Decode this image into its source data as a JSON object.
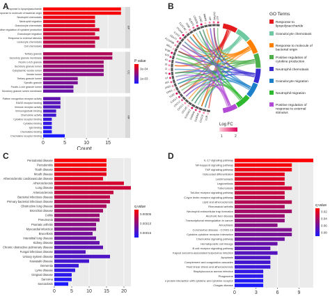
{
  "panels": {
    "a": {
      "letter": "A"
    },
    "b": {
      "letter": "B"
    },
    "c": {
      "letter": "C"
    },
    "d": {
      "letter": "D"
    }
  },
  "chart_data": [
    {
      "panel": "A",
      "type": "bar",
      "orientation": "horizontal",
      "xlabel": "Count",
      "xlim": [
        0,
        19
      ],
      "xticks": [
        0,
        5,
        10,
        15
      ],
      "color_legend": {
        "title": "P value",
        "ticks": [
          "3e-04",
          "1e-03"
        ],
        "colors": [
          "#ff0000",
          "#1a1aff"
        ]
      },
      "facets": [
        {
          "name": "BP",
          "categories": [
            "Response to lipopolysaccharide",
            "Response to molecule of bacterial origin",
            "Neutrophil chemotaxis",
            "Neutrophil migration",
            "Granulocyte chemotaxis",
            "Positive regulation of cytokine production",
            "Granulocyte migration",
            "Response to external stimulus",
            "Leukocyte chemotaxis",
            "Cell chemotaxis"
          ],
          "values": [
            18,
            18,
            12,
            12,
            12,
            13,
            12,
            13,
            12,
            12
          ]
        },
        {
          "name": "CC",
          "categories": [
            "Tertiary granule",
            "Secretory granule membrane",
            "Ficolin-1-rich granule",
            "Secretory granule lumen",
            "Cytoplasmic vesicle lumen",
            "Vesicle lumen",
            "Tertiary granule lumen",
            "Specific granule",
            "Ficolin-1-rich granule lumen",
            "Secretory granule lumen membrane"
          ],
          "values": [
            16,
            16,
            14,
            14,
            14,
            14,
            8,
            8,
            7,
            7
          ]
        },
        {
          "name": "MF",
          "categories": [
            "Pattern recognition receptor activity",
            "RAGE receptor binding",
            "Immune receptor activity",
            "Immunoglobulin binding",
            "Chemokine activity",
            "Cytokine receptor binding",
            "Cytokine binding",
            "IgG binding",
            "Chemokine binding",
            "Chemokine receptor binding"
          ],
          "values": [
            4,
            4,
            4,
            3,
            3,
            2,
            2,
            2,
            2,
            5
          ]
        }
      ]
    },
    {
      "panel": "B",
      "type": "chord",
      "genes": [
        "IL1B",
        "CXCL8",
        "S100A8",
        "S100A9",
        "S100A12",
        "CCL20",
        "CXCL1",
        "CXCL2",
        "CXCL3",
        "TLR2",
        "FPR1",
        "FPR2",
        "C5AR1",
        "CD14",
        "MMP9",
        "PTGS2",
        "SOCS3",
        "TREM1",
        "AQP9",
        "CSF3R",
        "SELL",
        "FCGR3B",
        "CD177",
        "IL1R2",
        "ITGAM",
        "CLEC4E",
        "OSM",
        "NLRP3",
        "CEBPB",
        "LCN2",
        "MMP8",
        "HP",
        "OLFM4",
        "LTF"
      ],
      "go_terms": [
        "Response to lipopolysaccharide",
        "Granulocyte chemotaxis",
        "Response to molecule of bacterial origin",
        "Positive regulation of cytokine production",
        "Neutrophil chemotaxis",
        "Granulocyte migration",
        "Neutrophil migration",
        "Positive regulation of response to external stimulus"
      ],
      "term_colors": [
        "#e41a1c",
        "#6ec9a0",
        "#ff7f00",
        "#4daf4a",
        "#3a2bd1",
        "#1c7fc9",
        "#2db82d",
        "#b24ad6"
      ],
      "legend_title": "GO Terms",
      "logfc_title": "Log FC",
      "logfc_ticks": [
        "1",
        "2"
      ]
    },
    {
      "panel": "C",
      "type": "bar",
      "orientation": "horizontal",
      "xlim": [
        0,
        22
      ],
      "xticks": [
        0,
        5,
        10,
        15,
        20
      ],
      "color_legend": {
        "title": "q value",
        "ticks": [
          "0.00005",
          "0.00010",
          "0.00015"
        ],
        "colors": [
          "#ff0000",
          "#1a1aff"
        ]
      },
      "categories": [
        "Periodontal disease",
        "Periodontitis",
        "Tooth disease",
        "Mouth disease",
        "Atherosclerotic cardiovascular disease",
        "Atherosclerosis",
        "Lung disease",
        "Arteriosclerosis",
        "Bacterial infectious disease",
        "Primary bacterial infectious disease",
        "Obstructive lung disease",
        "Bronchial disease",
        "Colitis",
        "Pneumonia",
        "Psoriatic arthritis",
        "Myocardial infarction",
        "Brucellosis",
        "Interstitial lung disease",
        "Kidney disease",
        "Chronic obstructive pulmonary disease",
        "Fungal infectious disease",
        "Urinary system disease",
        "Kawasaki disease",
        "Dementia",
        "Lyme disease",
        "Gingival disease",
        "Sarcoma",
        "Sarcoidosis"
      ],
      "values": [
        15,
        15,
        15,
        15,
        14,
        20,
        22,
        17,
        16,
        16,
        15,
        14,
        13,
        13,
        12,
        12,
        11,
        12,
        13,
        14,
        9,
        16,
        10,
        7,
        6,
        5,
        5,
        4
      ]
    },
    {
      "panel": "D",
      "type": "bar",
      "orientation": "horizontal",
      "xlim": [
        0,
        11
      ],
      "xticks": [
        0,
        3,
        6,
        9
      ],
      "color_legend": {
        "title": "q value",
        "ticks": [
          "0.02",
          "0.04",
          "0.06",
          "0.08"
        ],
        "colors": [
          "#ff0000",
          "#1a1aff"
        ]
      },
      "categories": [
        "IL-17 signaling pathway",
        "NF-kappa B signaling pathway",
        "TNF signaling pathway",
        "Osteoclast differentiation",
        "Leishmaniasis",
        "Legionellosis",
        "Tuberculosis",
        "Toll-like receptor signaling pathway",
        "C-type lectin receptor signaling pathway",
        "Lipid and atherosclerosis",
        "Rheumatoid arthritis",
        "Neutrophil extracellular trap formation",
        "Alcoholic liver disease",
        "Transcriptional misregulation in cancer",
        "Amoebiasis",
        "Coronavirus disease - COVID-19",
        "Cytokine-cytokine receptor interaction",
        "Chemokine signaling pathway",
        "Hematopoietic cell lineage",
        "B cell receptor signaling pathway",
        "Kaposi sarcoma-associated herpesvirus infection",
        "Apoptosis",
        "Complement and coagulation cascades",
        "Fluid shear stress and atherosclerosis",
        "Staphylococcus aureus infection",
        "Phagosome",
        "Viral protein interaction with cytokine and cytokine receptor",
        "Chagas disease"
      ],
      "values": [
        11,
        8,
        8,
        7,
        7,
        7,
        8,
        7,
        7,
        8,
        7,
        8,
        7,
        7,
        6,
        8,
        8,
        7,
        6,
        5,
        6,
        5,
        5,
        5,
        4,
        4,
        4,
        4
      ]
    }
  ]
}
